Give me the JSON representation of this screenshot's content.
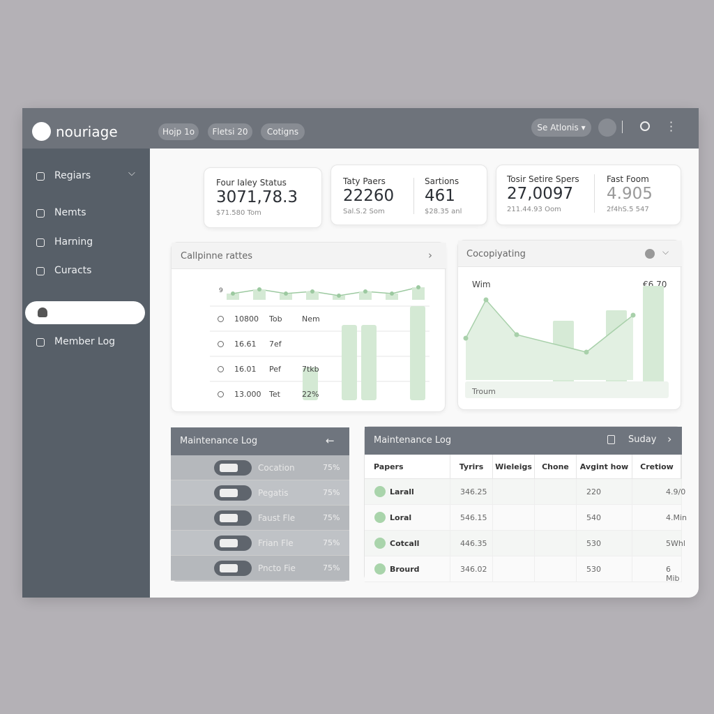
{
  "header": {
    "logo": "nouriage",
    "nav": [
      "Hojp 1o",
      "Fletsi 20",
      "Cotigns"
    ],
    "action": "Se Atlonis"
  },
  "sidebar": {
    "items": [
      "Regiars",
      "Nemts",
      "Harning",
      "Curacts"
    ],
    "footer_item": "Member Log"
  },
  "stats": [
    {
      "label": "Four Ialey Status",
      "value": "3071,78.3",
      "sub": "$71.580 Tom"
    },
    {
      "label": "Taty Paers",
      "value": "22260",
      "sub": "Sal.S.2 Som"
    },
    {
      "label": "Sartions",
      "value": "461",
      "sub": "$28.35 anl"
    },
    {
      "label": "Tosir Setire Spers",
      "value": "27,0097",
      "sub": "211.44.93 Oom"
    },
    {
      "label": "Fast Foom",
      "value": "4.905",
      "sub": "2f4hS.5 547"
    }
  ],
  "rates_panel": {
    "title": "Callpinne rattes",
    "axis_label": "9",
    "rows": [
      [
        "10800",
        "Tob",
        "Nem"
      ],
      [
        "16.61",
        "7ef",
        null
      ],
      [
        "16.01",
        "Pef",
        "7tkb"
      ],
      [
        "13.000",
        "Tet",
        "22%"
      ]
    ],
    "line": [
      3,
      5,
      3,
      4,
      2,
      4,
      3,
      6
    ],
    "bars": [
      35,
      80,
      80,
      100
    ]
  },
  "copy_panel": {
    "title": "Cocopiyating",
    "left_label": "Wim",
    "right_label": "€6.70",
    "bottom_label": "Troum",
    "line": [
      60,
      115,
      65,
      40,
      93
    ],
    "bars": [
      85,
      100,
      135
    ]
  },
  "maintenance_list": {
    "title": "Maintenance Log",
    "rows": [
      [
        "Cocation",
        "75%"
      ],
      [
        "Pegatis",
        "75%"
      ],
      [
        "Faust Fle",
        "75%"
      ],
      [
        "Frian Fle",
        "75%"
      ],
      [
        "Pncto Fie",
        "75%"
      ]
    ]
  },
  "maintenance_table": {
    "title": "Maintenance Log",
    "day": "Suday",
    "columns": [
      "Papers",
      "Tyrirs",
      "Wieleigs",
      "Chone",
      "Avgint how",
      "Cretiow"
    ],
    "rows": [
      [
        "Larall",
        "346.25",
        null,
        null,
        "220",
        "4.9/0"
      ],
      [
        "Loral",
        "546.15",
        null,
        null,
        "540",
        "4.Min"
      ],
      [
        "Cotcall",
        "446.35",
        null,
        null,
        "530",
        "5Whl"
      ],
      [
        "Brourd",
        "346.02",
        null,
        null,
        "530",
        "6 Mib"
      ]
    ]
  }
}
